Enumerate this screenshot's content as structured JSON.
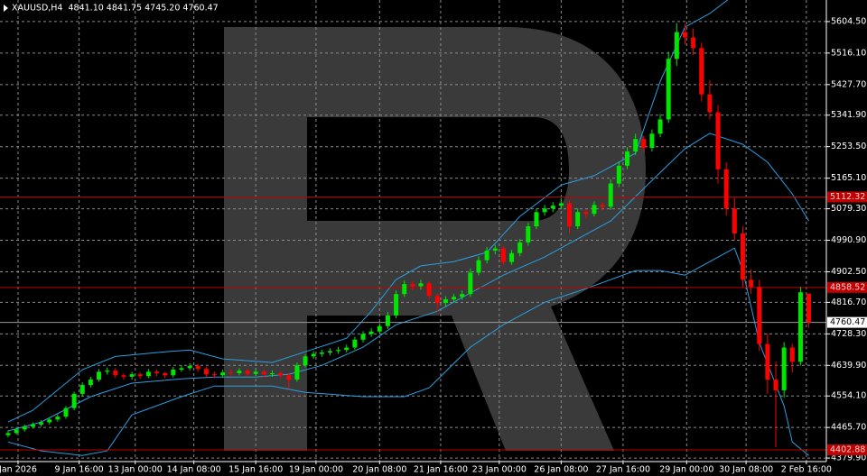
{
  "chart_data": {
    "type": "candlestick",
    "title": "XAUUSD,H4  4841.10 4841.75 4745.20 4760.47",
    "up_color": "#00e600",
    "down_color": "#ff0000",
    "band_color": "#2a9fe0",
    "ohlc": [
      [
        4444,
        4458,
        4438,
        4450
      ],
      [
        4450,
        4466,
        4446,
        4460
      ],
      [
        4460,
        4474,
        4454,
        4468
      ],
      [
        4468,
        4480,
        4462,
        4474
      ],
      [
        4474,
        4486,
        4468,
        4480
      ],
      [
        4480,
        4494,
        4474,
        4488
      ],
      [
        4488,
        4502,
        4482,
        4496
      ],
      [
        4496,
        4526,
        4490,
        4520
      ],
      [
        4520,
        4566,
        4514,
        4560
      ],
      [
        4560,
        4592,
        4552,
        4585
      ],
      [
        4585,
        4608,
        4578,
        4600
      ],
      [
        4600,
        4630,
        4594,
        4622
      ],
      [
        4622,
        4634,
        4614,
        4625
      ],
      [
        4625,
        4632,
        4604,
        4612
      ],
      [
        4612,
        4618,
        4600,
        4608
      ],
      [
        4608,
        4622,
        4600,
        4615
      ],
      [
        4615,
        4620,
        4602,
        4610
      ],
      [
        4610,
        4630,
        4604,
        4622
      ],
      [
        4622,
        4628,
        4610,
        4618
      ],
      [
        4618,
        4622,
        4604,
        4612
      ],
      [
        4612,
        4636,
        4606,
        4628
      ],
      [
        4628,
        4640,
        4622,
        4632
      ],
      [
        4632,
        4646,
        4626,
        4638
      ],
      [
        4638,
        4644,
        4622,
        4630
      ],
      [
        4630,
        4636,
        4606,
        4615
      ],
      [
        4615,
        4622,
        4604,
        4612
      ],
      [
        4612,
        4628,
        4606,
        4620
      ],
      [
        4620,
        4628,
        4610,
        4618
      ],
      [
        4618,
        4632,
        4612,
        4625
      ],
      [
        4625,
        4630,
        4608,
        4616
      ],
      [
        4616,
        4630,
        4610,
        4622
      ],
      [
        4622,
        4628,
        4606,
        4615
      ],
      [
        4615,
        4626,
        4608,
        4618
      ],
      [
        4618,
        4624,
        4604,
        4612
      ],
      [
        4612,
        4618,
        4575,
        4600
      ],
      [
        4600,
        4648,
        4594,
        4640
      ],
      [
        4640,
        4672,
        4634,
        4665
      ],
      [
        4665,
        4680,
        4658,
        4672
      ],
      [
        4672,
        4684,
        4664,
        4676
      ],
      [
        4676,
        4688,
        4668,
        4680
      ],
      [
        4680,
        4692,
        4672,
        4683
      ],
      [
        4683,
        4698,
        4676,
        4690
      ],
      [
        4690,
        4720,
        4684,
        4712
      ],
      [
        4712,
        4736,
        4704,
        4728
      ],
      [
        4728,
        4744,
        4720,
        4735
      ],
      [
        4735,
        4758,
        4728,
        4750
      ],
      [
        4750,
        4790,
        4742,
        4780
      ],
      [
        4780,
        4850,
        4772,
        4840
      ],
      [
        4840,
        4878,
        4832,
        4868
      ],
      [
        4868,
        4876,
        4850,
        4862
      ],
      [
        4862,
        4880,
        4852,
        4870
      ],
      [
        4870,
        4876,
        4826,
        4835
      ],
      [
        4835,
        4842,
        4790,
        4815
      ],
      [
        4815,
        4834,
        4806,
        4825
      ],
      [
        4825,
        4840,
        4818,
        4832
      ],
      [
        4832,
        4850,
        4824,
        4840
      ],
      [
        4840,
        4912,
        4832,
        4900
      ],
      [
        4900,
        4946,
        4892,
        4935
      ],
      [
        4935,
        4972,
        4926,
        4962
      ],
      [
        4962,
        4978,
        4952,
        4968
      ],
      [
        4968,
        4974,
        4920,
        4930
      ],
      [
        4930,
        4964,
        4922,
        4955
      ],
      [
        4955,
        4994,
        4946,
        4985
      ],
      [
        4985,
        5040,
        4976,
        5030
      ],
      [
        5030,
        5080,
        5022,
        5070
      ],
      [
        5070,
        5090,
        5060,
        5080
      ],
      [
        5080,
        5098,
        5070,
        5088
      ],
      [
        5088,
        5110,
        5078,
        5095
      ],
      [
        5095,
        5104,
        5010,
        5030
      ],
      [
        5030,
        5080,
        5022,
        5070
      ],
      [
        5070,
        5078,
        5052,
        5065
      ],
      [
        5065,
        5100,
        5058,
        5090
      ],
      [
        5090,
        5098,
        5074,
        5085
      ],
      [
        5085,
        5162,
        5076,
        5150
      ],
      [
        5150,
        5212,
        5140,
        5200
      ],
      [
        5200,
        5252,
        5190,
        5240
      ],
      [
        5240,
        5290,
        5230,
        5275
      ],
      [
        5275,
        5284,
        5238,
        5250
      ],
      [
        5250,
        5302,
        5240,
        5290
      ],
      [
        5290,
        5345,
        5280,
        5330
      ],
      [
        5330,
        5520,
        5320,
        5500
      ],
      [
        5500,
        5600,
        5480,
        5575
      ],
      [
        5575,
        5598,
        5540,
        5560
      ],
      [
        5560,
        5585,
        5510,
        5530
      ],
      [
        5530,
        5545,
        5380,
        5400
      ],
      [
        5400,
        5440,
        5330,
        5350
      ],
      [
        5350,
        5370,
        5150,
        5190
      ],
      [
        5190,
        5210,
        5060,
        5080
      ],
      [
        5080,
        5110,
        4990,
        5010
      ],
      [
        5010,
        5030,
        4860,
        4880
      ],
      [
        4880,
        4910,
        4840,
        4860
      ],
      [
        4860,
        4880,
        4680,
        4700
      ],
      [
        4700,
        4730,
        4560,
        4600
      ],
      [
        4600,
        4650,
        4410,
        4570
      ],
      [
        4570,
        4705,
        4550,
        4690
      ],
      [
        4690,
        4700,
        4620,
        4650
      ],
      [
        4650,
        4860,
        4640,
        4845
      ],
      [
        4841.1,
        4841.75,
        4745.2,
        4760.47
      ]
    ],
    "bands": [
      {
        "x": [
          0,
          3,
          9,
          13,
          19,
          22,
          26,
          32,
          36,
          41,
          44,
          47,
          50,
          54,
          58,
          62,
          67,
          71,
          76,
          79,
          82,
          85,
          88
        ],
        "values": [
          4481,
          4514,
          4628,
          4665,
          4678,
          4683,
          4658,
          4648,
          4678,
          4716,
          4792,
          4881,
          4919,
          4931,
          4957,
          5058,
          5146,
          5172,
          5235,
          5437,
          5589,
          5627,
          5680
        ]
      },
      {
        "x": [
          0,
          4,
          10,
          15,
          21,
          25,
          30,
          34,
          38,
          43,
          47,
          52,
          56,
          60,
          65,
          69,
          73,
          78,
          82,
          85,
          89,
          92,
          95,
          97
        ],
        "values": [
          4456,
          4481,
          4552,
          4590,
          4602,
          4607,
          4607,
          4615,
          4640,
          4691,
          4754,
          4792,
          4843,
          4893,
          4944,
          4995,
          5045,
          5159,
          5248,
          5291,
          5260,
          5210,
          5121,
          5045
        ]
      },
      {
        "x": [
          0,
          4,
          9,
          12,
          15,
          21,
          25,
          32,
          36,
          43,
          48,
          51,
          56,
          60,
          65,
          70,
          76,
          79,
          82,
          85,
          88,
          89,
          91,
          94,
          95,
          97
        ],
        "values": [
          4425,
          4400,
          4387,
          4400,
          4501,
          4552,
          4582,
          4582,
          4564,
          4552,
          4552,
          4577,
          4691,
          4754,
          4817,
          4855,
          4906,
          4906,
          4893,
          4931,
          4969,
          4906,
          4704,
          4526,
          4425,
          4387
        ]
      }
    ],
    "levels": [
      {
        "value": 5112.32,
        "color": "#c00000"
      },
      {
        "value": 4858.52,
        "color": "#c00000"
      },
      {
        "value": 4402.88,
        "color": "#c00000"
      }
    ],
    "price": {
      "value": 4760.47,
      "color": "#9a9a9a"
    },
    "ylim": [
      4370,
      5665
    ],
    "yticks": [
      {
        "value": 5604.5,
        "label": "5604.50"
      },
      {
        "value": 5516.1,
        "label": "5516.10"
      },
      {
        "value": 5427.7,
        "label": "5427.70"
      },
      {
        "value": 5341.9,
        "label": "5341.90"
      },
      {
        "value": 5253.5,
        "label": "5253.50"
      },
      {
        "value": 5165.1,
        "label": "5165.10"
      },
      {
        "value": 5079.3,
        "label": "5079.30"
      },
      {
        "value": 4990.9,
        "label": "4990.90"
      },
      {
        "value": 4902.5,
        "label": "4902.50"
      },
      {
        "value": 4816.7,
        "label": "4816.70"
      },
      {
        "value": 4728.3,
        "label": "4728.30"
      },
      {
        "value": 4639.9,
        "label": "4639.90"
      },
      {
        "value": 4554.1,
        "label": "4554.10"
      },
      {
        "value": 4465.7,
        "label": "4465.70"
      },
      {
        "value": 4379.9,
        "label": "4379.90"
      }
    ],
    "xticks": [
      {
        "value": 1.2,
        "label": "Jan 2026"
      },
      {
        "value": 8.6,
        "label": "9 Jan 16:00"
      },
      {
        "value": 15.4,
        "label": "13 Jan 00:00"
      },
      {
        "value": 22.5,
        "label": "14 Jan 08:00"
      },
      {
        "value": 30,
        "label": "15 Jan 16:00"
      },
      {
        "value": 37.3,
        "label": "19 Jan 00:00"
      },
      {
        "value": 45,
        "label": "20 Jan 08:00"
      },
      {
        "value": 52.4,
        "label": "21 Jan 16:00"
      },
      {
        "value": 59.5,
        "label": "23 Jan 00:00"
      },
      {
        "value": 67,
        "label": "26 Jan 08:00"
      },
      {
        "value": 74.5,
        "label": "27 Jan 16:00"
      },
      {
        "value": 82.2,
        "label": "29 Jan 00:00"
      },
      {
        "value": 89.4,
        "label": "30 Jan 08:00"
      },
      {
        "value": 96.7,
        "label": "2 Feb 16:00"
      }
    ],
    "grid": true
  }
}
